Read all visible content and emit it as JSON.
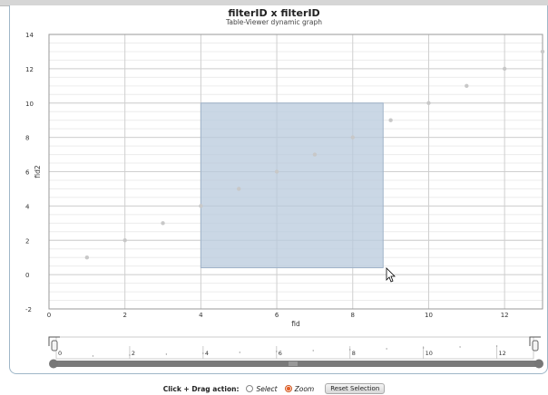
{
  "chart": {
    "title": "filterID x filterID",
    "subtitle": "Table-Viewer dynamic graph"
  },
  "chart_data": {
    "type": "scatter",
    "title": "filterID x filterID",
    "subtitle": "Table-Viewer dynamic graph",
    "xlabel": "fid",
    "ylabel": "fid2",
    "xlim": [
      0,
      13
    ],
    "ylim": [
      -2,
      14
    ],
    "x_ticks": [
      0,
      2,
      4,
      6,
      8,
      10,
      12
    ],
    "y_ticks": [
      -2,
      0,
      2,
      4,
      6,
      8,
      10,
      12,
      14
    ],
    "grid": true,
    "x": [
      1,
      2,
      3,
      4,
      5,
      6,
      7,
      8,
      9,
      10,
      11,
      12,
      13
    ],
    "y": [
      1,
      2,
      3,
      4,
      5,
      6,
      7,
      8,
      9,
      10,
      11,
      12,
      13
    ],
    "selection": {
      "x": [
        4,
        8.8
      ],
      "y": [
        0.4,
        10
      ]
    },
    "navigator_ticks": [
      0,
      2,
      4,
      6,
      8,
      10,
      12
    ]
  },
  "controls": {
    "action_label": "Click + Drag action:",
    "select_label": "Select",
    "zoom_label": "Zoom",
    "selected_mode": "Zoom",
    "reset_label": "Reset Selection"
  },
  "colors": {
    "point": "#c8c8c8",
    "selection_fill": "#b8c9dc",
    "grid_major": "#cfcfcf",
    "grid_minor": "#ececec",
    "navigator_bar": "#7a7a7a"
  }
}
